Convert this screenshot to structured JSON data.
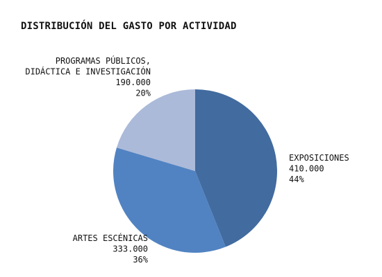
{
  "chart_data": {
    "type": "pie",
    "title": "DISTRIBUCIÓN DEL GASTO POR ACTIVIDAD",
    "slices": [
      {
        "label_lines": [
          "EXPOSICIONES"
        ],
        "value": 410000,
        "value_label": "410.000",
        "percent_label": "44%",
        "color": "#426b9f"
      },
      {
        "label_lines": [
          "ARTES ESCÉNICAS"
        ],
        "value": 333000,
        "value_label": "333.000",
        "percent_label": "36%",
        "color": "#5183c2"
      },
      {
        "label_lines": [
          "PROGRAMAS PÚBLICOS,",
          "DIDÁCTICA E INVESTIGACIÓN"
        ],
        "value": 190000,
        "value_label": "190.000",
        "percent_label": "20%",
        "color": "#abbad9"
      }
    ]
  }
}
